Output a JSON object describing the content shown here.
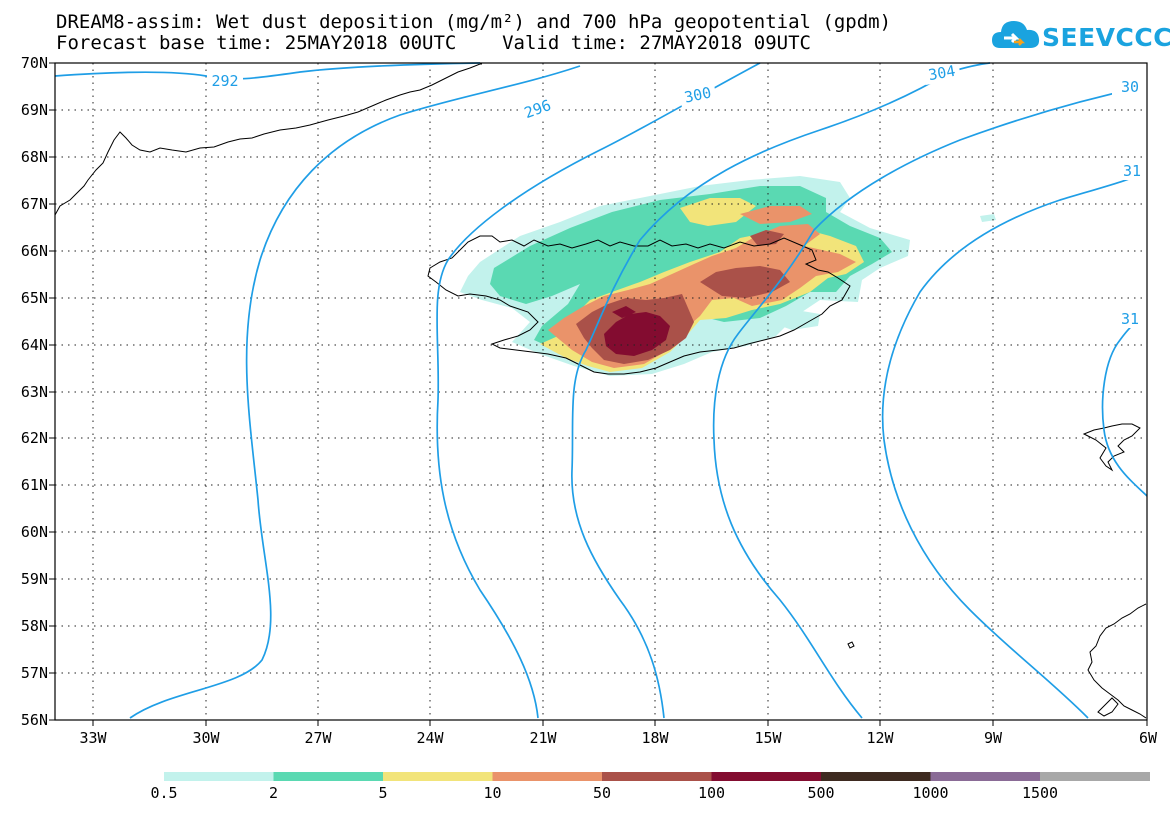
{
  "header": {
    "title_line1": "DREAM8-assim: Wet dust deposition (mg/m²) and 700 hPa geopotential (gpdm)",
    "title_line2": "Forecast base time: 25MAY2018 00UTC    Valid time: 27MAY2018 09UTC"
  },
  "logo": {
    "text": "SEEVCCC",
    "color": "#1aa3df"
  },
  "map": {
    "lat_labels": [
      "70N",
      "69N",
      "68N",
      "67N",
      "66N",
      "65N",
      "64N",
      "63N",
      "62N",
      "61N",
      "60N",
      "59N",
      "58N",
      "57N",
      "56N"
    ],
    "lon_labels": [
      "33W",
      "30W",
      "27W",
      "24W",
      "21W",
      "18W",
      "15W",
      "12W",
      "9W",
      "6W"
    ],
    "contour_color": "#1f9ee6",
    "contour_labels": [
      "292",
      "296",
      "300",
      "304",
      "30",
      "31",
      "31"
    ]
  },
  "colorbar": {
    "labels": [
      "0.5",
      "2",
      "5",
      "10",
      "50",
      "100",
      "500",
      "1000",
      "1500"
    ],
    "colors": [
      "#c2f2ec",
      "#5ad9b2",
      "#f2e47a",
      "#ea936a",
      "#aa5149",
      "#830c30",
      "#3e2a20",
      "#8a6b96",
      "#a8a8a8"
    ]
  }
}
